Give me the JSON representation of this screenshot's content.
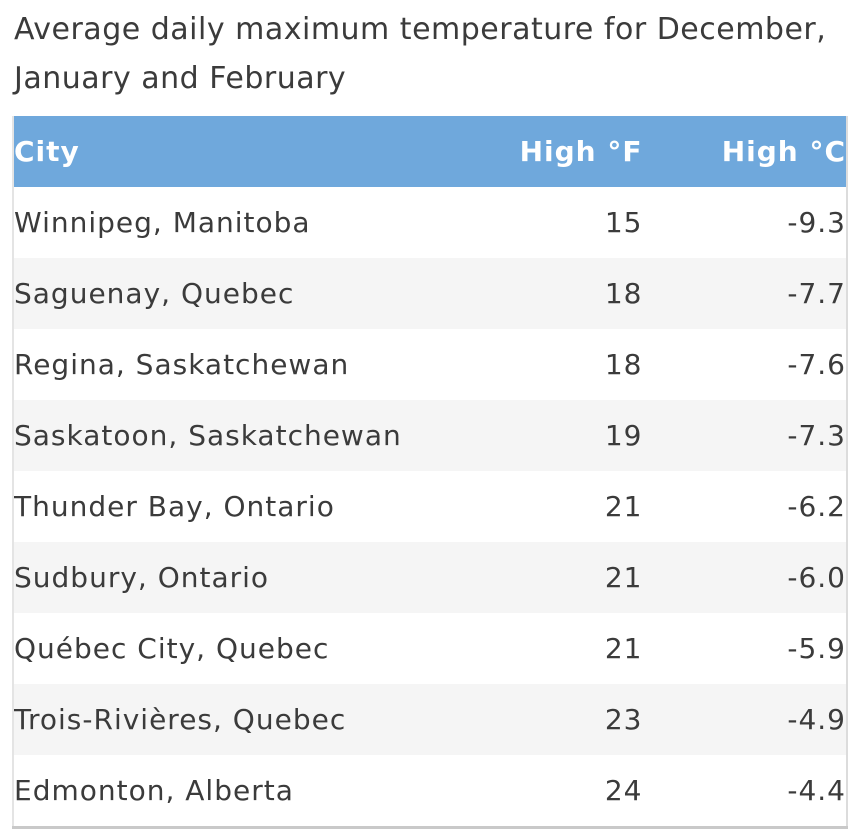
{
  "title": "Average daily maximum temperature for December, January and February",
  "chart_data": {
    "type": "table",
    "title": "Average daily maximum temperature for December, January and February",
    "columns": [
      "City",
      "High °F",
      "High °C"
    ],
    "rows": [
      {
        "city": "Winnipeg, Manitoba",
        "high_f": 15,
        "high_c": "-9.3"
      },
      {
        "city": "Saguenay, Quebec",
        "high_f": 18,
        "high_c": "-7.7"
      },
      {
        "city": "Regina, Saskatchewan",
        "high_f": 18,
        "high_c": "-7.6"
      },
      {
        "city": "Saskatoon, Saskatchewan",
        "high_f": 19,
        "high_c": "-7.3"
      },
      {
        "city": "Thunder Bay, Ontario",
        "high_f": 21,
        "high_c": "-6.2"
      },
      {
        "city": "Sudbury, Ontario",
        "high_f": 21,
        "high_c": "-6.0"
      },
      {
        "city": "Québec City, Quebec",
        "high_f": 21,
        "high_c": "-5.9"
      },
      {
        "city": "Trois-Rivières, Quebec",
        "high_f": 23,
        "high_c": "-4.9"
      },
      {
        "city": "Edmonton, Alberta",
        "high_f": 24,
        "high_c": "-4.4"
      }
    ],
    "layout": {
      "header_position": "top",
      "striped_rows": true,
      "numeric_alignment": "right"
    }
  },
  "colors": {
    "header_bg": "#6fa8dc",
    "header_text": "#ffffff",
    "body_text": "#3b3b3b",
    "row_alt_bg": "#f5f5f5",
    "border": "#c9c9c9"
  }
}
